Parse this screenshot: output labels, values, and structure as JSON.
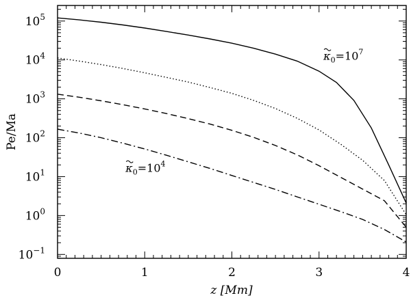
{
  "chart_data": {
    "type": "line",
    "xlabel": "z [Mm]",
    "ylabel": "Pe/Ma",
    "xlim": [
      0,
      4
    ],
    "ylim_log10": [
      -1.1,
      5.4
    ],
    "yscale": "log",
    "x_ticks": [
      {
        "value": 0,
        "label": "0"
      },
      {
        "value": 1,
        "label": "1"
      },
      {
        "value": 2,
        "label": "2"
      },
      {
        "value": 3,
        "label": "3"
      },
      {
        "value": 4,
        "label": "4"
      }
    ],
    "y_ticks": [
      {
        "exp": -1,
        "base": "10",
        "sup": "−1"
      },
      {
        "exp": 0,
        "base": "10",
        "sup": "0"
      },
      {
        "exp": 1,
        "base": "10",
        "sup": "1"
      },
      {
        "exp": 2,
        "base": "10",
        "sup": "2"
      },
      {
        "exp": 3,
        "base": "10",
        "sup": "3"
      },
      {
        "exp": 4,
        "base": "10",
        "sup": "4"
      },
      {
        "exp": 5,
        "base": "10",
        "sup": "5"
      }
    ],
    "grid": false,
    "series": [
      {
        "style": "solid",
        "x": [
          0,
          0.25,
          0.5,
          0.75,
          1.0,
          1.25,
          1.5,
          1.75,
          2.0,
          2.25,
          2.5,
          2.75,
          3.0,
          3.2,
          3.4,
          3.6,
          3.8,
          4.0
        ],
        "log10_y": [
          5.08,
          5.03,
          4.97,
          4.9,
          4.82,
          4.73,
          4.64,
          4.54,
          4.43,
          4.3,
          4.15,
          3.97,
          3.71,
          3.42,
          2.96,
          2.25,
          1.3,
          0.32
        ]
      },
      {
        "style": "dotted",
        "x": [
          0,
          0.25,
          0.5,
          0.75,
          1.0,
          1.25,
          1.5,
          1.75,
          2.0,
          2.25,
          2.5,
          2.75,
          3.0,
          3.25,
          3.5,
          3.75,
          4.0
        ],
        "log10_y": [
          4.05,
          3.97,
          3.88,
          3.78,
          3.67,
          3.55,
          3.43,
          3.29,
          3.14,
          2.96,
          2.75,
          2.5,
          2.2,
          1.83,
          1.42,
          0.9,
          0.02
        ]
      },
      {
        "style": "dashed",
        "x": [
          0,
          0.25,
          0.5,
          0.75,
          1.0,
          1.25,
          1.5,
          1.75,
          2.0,
          2.25,
          2.5,
          2.75,
          3.0,
          3.25,
          3.5,
          3.75,
          4.0
        ],
        "log10_y": [
          3.12,
          3.04,
          2.95,
          2.85,
          2.74,
          2.62,
          2.49,
          2.35,
          2.19,
          2.01,
          1.8,
          1.56,
          1.28,
          0.98,
          0.68,
          0.38,
          -0.3
        ]
      },
      {
        "style": "dashdot",
        "x": [
          0,
          0.25,
          0.5,
          0.75,
          1.0,
          1.25,
          1.5,
          1.75,
          2.0,
          2.25,
          2.5,
          2.75,
          3.0,
          3.25,
          3.5,
          3.75,
          4.0
        ],
        "log10_y": [
          2.22,
          2.12,
          2.0,
          1.86,
          1.71,
          1.55,
          1.38,
          1.21,
          1.03,
          0.85,
          0.67,
          0.48,
          0.29,
          0.1,
          -0.1,
          -0.36,
          -0.68
        ]
      }
    ],
    "annotations": [
      {
        "base": "κ",
        "sub": "0",
        "eq": "=10",
        "sup": "7",
        "at_x": 3.05,
        "at_log10_y": 4.0
      },
      {
        "base": "κ",
        "sub": "0",
        "eq": "=10",
        "sup": "4",
        "at_x": 0.78,
        "at_log10_y": 1.12
      }
    ]
  }
}
